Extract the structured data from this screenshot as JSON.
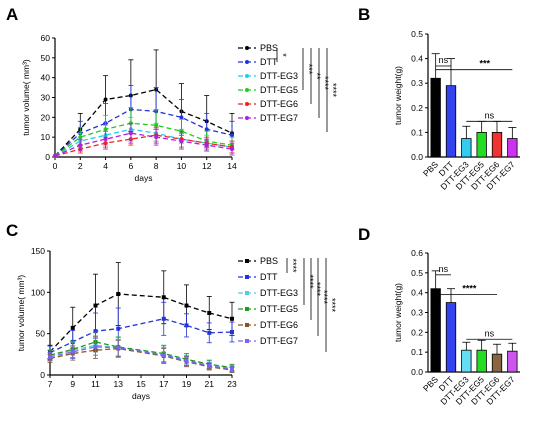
{
  "chart_data": [
    {
      "id": "A",
      "panel_label": "A",
      "type": "line",
      "xlabel": "days",
      "ylabel": "tumor volume( mm³)",
      "xlim": [
        0,
        14
      ],
      "ylim": [
        0,
        60
      ],
      "xticks": [
        0,
        2,
        4,
        6,
        8,
        10,
        12,
        14
      ],
      "yticks": [
        0,
        10,
        20,
        30,
        40,
        50,
        60
      ],
      "x": [
        0,
        2,
        4,
        6,
        8,
        10,
        12,
        14
      ],
      "series": [
        {
          "name": "PBS",
          "color": "#000000",
          "marker": "circle",
          "values": [
            0.5,
            14,
            29,
            31,
            34,
            23,
            18,
            12
          ],
          "errors": [
            0,
            8,
            12,
            18,
            20,
            14,
            13,
            10
          ]
        },
        {
          "name": "DTT",
          "color": "#2233dd",
          "marker": "circle",
          "values": [
            0.5,
            12,
            17,
            24,
            23,
            20,
            14,
            11
          ],
          "errors": [
            0,
            6,
            10,
            12,
            12,
            9,
            8,
            7
          ]
        },
        {
          "name": "DTT-EG3",
          "color": "#22ccee",
          "marker": "circle",
          "values": [
            0.5,
            8,
            11,
            14,
            12,
            9,
            7,
            5
          ],
          "errors": [
            0,
            4,
            5,
            6,
            5,
            5,
            4,
            3
          ]
        },
        {
          "name": "DTT-EG5",
          "color": "#22cc22",
          "marker": "circle",
          "values": [
            0.5,
            10,
            14,
            17,
            16,
            13,
            8,
            6
          ],
          "errors": [
            0,
            5,
            7,
            8,
            8,
            6,
            5,
            4
          ]
        },
        {
          "name": "DTT-EG6",
          "color": "#ee2222",
          "marker": "circle",
          "values": [
            0.5,
            4,
            7,
            9,
            11,
            9,
            7,
            5
          ],
          "errors": [
            0,
            2,
            3,
            3,
            4,
            4,
            3,
            3
          ]
        },
        {
          "name": "DTT-EG7",
          "color": "#aa22dd",
          "marker": "circle",
          "values": [
            0.5,
            6,
            9,
            12,
            10,
            8,
            6,
            4
          ],
          "errors": [
            0,
            3,
            4,
            5,
            4,
            4,
            3,
            3
          ]
        }
      ],
      "legend_position": "right",
      "significance": [
        "*",
        "***",
        "**",
        "****",
        "****"
      ]
    },
    {
      "id": "B",
      "panel_label": "B",
      "type": "bar",
      "ylabel": "tumor weight(g)",
      "ylim": [
        0,
        0.5
      ],
      "yticks": [
        0.0,
        0.1,
        0.2,
        0.3,
        0.4,
        0.5
      ],
      "categories": [
        "PBS",
        "DTT",
        "DTT-EG3",
        "DTT-EG5",
        "DTT-EG6",
        "DTT-EG7"
      ],
      "values": [
        0.32,
        0.29,
        0.075,
        0.1,
        0.1,
        0.075
      ],
      "errors": [
        0.1,
        0.11,
        0.05,
        0.045,
        0.045,
        0.045
      ],
      "colors": [
        "#000000",
        "#3344ee",
        "#33ccee",
        "#22dd22",
        "#ee3333",
        "#cc33ee"
      ],
      "significance": [
        {
          "label": "ns",
          "type": "pair"
        },
        {
          "label": "***",
          "type": "group"
        },
        {
          "label": "ns",
          "type": "group-inner"
        }
      ]
    },
    {
      "id": "C",
      "panel_label": "C",
      "type": "line",
      "xlabel": "days",
      "ylabel": "tumor volume( mm³)",
      "xlim": [
        7,
        23
      ],
      "ylim": [
        0,
        150
      ],
      "xticks": [
        7,
        9,
        11,
        13,
        15,
        17,
        19,
        21,
        23
      ],
      "yticks": [
        0,
        50,
        100,
        150
      ],
      "x": [
        7,
        9,
        11,
        13,
        17,
        19,
        21,
        23
      ],
      "series": [
        {
          "name": "PBS",
          "color": "#000000",
          "marker": "square",
          "values": [
            28,
            57,
            84,
            98,
            94,
            84,
            75,
            68
          ],
          "errors": [
            8,
            25,
            38,
            38,
            32,
            25,
            20,
            20
          ]
        },
        {
          "name": "DTT",
          "color": "#2233dd",
          "marker": "square",
          "values": [
            27,
            40,
            53,
            56,
            68,
            60,
            51,
            52
          ],
          "errors": [
            8,
            14,
            22,
            25,
            20,
            14,
            12,
            12
          ]
        },
        {
          "name": "DTT-EG3",
          "color": "#55ccdd",
          "marker": "square",
          "values": [
            24,
            30,
            36,
            33,
            25,
            18,
            12,
            8
          ],
          "errors": [
            6,
            10,
            12,
            12,
            10,
            6,
            5,
            4
          ]
        },
        {
          "name": "DTT-EG5",
          "color": "#229922",
          "marker": "square",
          "values": [
            24,
            31,
            40,
            34,
            26,
            19,
            13,
            9
          ],
          "errors": [
            6,
            10,
            12,
            12,
            10,
            7,
            5,
            4
          ]
        },
        {
          "name": "DTT-EG6",
          "color": "#885522",
          "marker": "square",
          "values": [
            20,
            26,
            30,
            32,
            23,
            16,
            10,
            6
          ],
          "errors": [
            5,
            8,
            10,
            10,
            9,
            6,
            4,
            3
          ]
        },
        {
          "name": "DTT-EG7",
          "color": "#7766ee",
          "marker": "square",
          "values": [
            22,
            28,
            34,
            33,
            24,
            17,
            11,
            7
          ],
          "errors": [
            5,
            8,
            10,
            10,
            9,
            6,
            4,
            3
          ]
        }
      ],
      "legend_position": "right",
      "significance": [
        "****",
        "****",
        "****",
        "****",
        "****"
      ]
    },
    {
      "id": "D",
      "panel_label": "D",
      "type": "bar",
      "ylabel": "tumor weight(g)",
      "ylim": [
        0,
        0.6
      ],
      "yticks": [
        0.0,
        0.1,
        0.2,
        0.3,
        0.4,
        0.5,
        0.6
      ],
      "categories": [
        "PBS",
        "DTT",
        "DTT-EG3",
        "DTT-EG5",
        "DTT-EG6",
        "DTT-EG7"
      ],
      "values": [
        0.42,
        0.35,
        0.11,
        0.11,
        0.09,
        0.105
      ],
      "errors": [
        0.09,
        0.07,
        0.04,
        0.05,
        0.05,
        0.04
      ],
      "colors": [
        "#000000",
        "#3344ee",
        "#66ddf4",
        "#22dd22",
        "#886644",
        "#cc55ee"
      ],
      "significance": [
        {
          "label": "ns",
          "type": "pair"
        },
        {
          "label": "****",
          "type": "group"
        },
        {
          "label": "ns",
          "type": "group-inner"
        }
      ]
    }
  ]
}
